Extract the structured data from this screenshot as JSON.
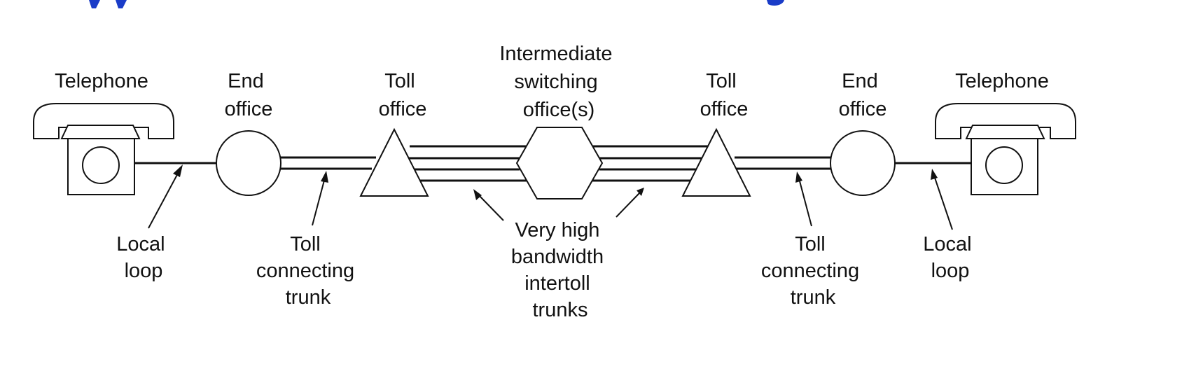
{
  "colors": {
    "ink": "#111111",
    "title_blue": "#1a3cc8",
    "background": "#ffffff"
  },
  "labels": {
    "telephone_left": "Telephone",
    "telephone_right": "Telephone",
    "end_office_left": [
      "End",
      "office"
    ],
    "end_office_right": [
      "End",
      "office"
    ],
    "toll_office_left": [
      "Toll",
      "office"
    ],
    "toll_office_right": [
      "Toll",
      "office"
    ],
    "intermediate": [
      "Intermediate",
      "switching",
      "office(s)"
    ],
    "local_loop_left": [
      "Local",
      "loop"
    ],
    "local_loop_right": [
      "Local",
      "loop"
    ],
    "toll_trunk_left": [
      "Toll",
      "connecting",
      "trunk"
    ],
    "toll_trunk_right": [
      "Toll",
      "connecting",
      "trunk"
    ],
    "intertoll": [
      "Very high",
      "bandwidth",
      "intertoll",
      "trunks"
    ]
  }
}
